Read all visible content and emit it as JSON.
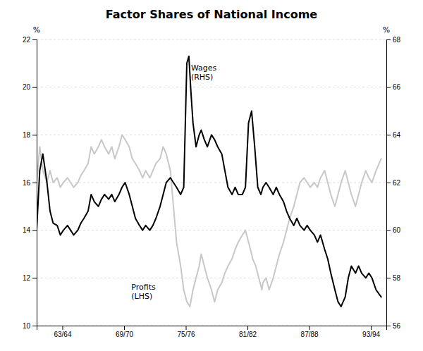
{
  "chart_data": {
    "type": "line",
    "title": "Factor Shares of National Income",
    "ylabel": "%",
    "y2label": "%",
    "xlim": [
      1961.0,
      1995.0
    ],
    "xticks": [
      {
        "value": 1963.5,
        "label": "63/64"
      },
      {
        "value": 1969.5,
        "label": "69/70"
      },
      {
        "value": 1975.5,
        "label": "75/76"
      },
      {
        "value": 1981.5,
        "label": "81/82"
      },
      {
        "value": 1987.5,
        "label": "87/88"
      },
      {
        "value": 1993.5,
        "label": "93/94"
      }
    ],
    "ylim": [
      10,
      22
    ],
    "yticks": [
      10,
      12,
      14,
      16,
      18,
      20,
      22
    ],
    "y2lim": [
      56,
      68
    ],
    "y2ticks": [
      56,
      58,
      60,
      62,
      64,
      66,
      68
    ],
    "grid": true,
    "series": [
      {
        "color": "#c8c8c8",
        "axis": "y2",
        "x": [
          1961.0,
          1961.3,
          1961.6,
          1962.0,
          1962.3,
          1962.6,
          1963.0,
          1963.3,
          1963.6,
          1964.0,
          1964.3,
          1964.6,
          1965.0,
          1965.3,
          1965.6,
          1966.0,
          1966.3,
          1966.6,
          1967.0,
          1967.3,
          1967.6,
          1968.0,
          1968.3,
          1968.6,
          1969.0,
          1969.3,
          1969.6,
          1970.0,
          1970.3,
          1970.6,
          1971.0,
          1971.3,
          1971.6,
          1972.0,
          1972.3,
          1972.6,
          1973.0,
          1973.3,
          1973.6,
          1974.0,
          1974.3,
          1974.6,
          1975.0,
          1975.3,
          1975.6,
          1975.9,
          1976.2,
          1976.5,
          1976.8,
          1977.0,
          1977.3,
          1977.6,
          1978.0,
          1978.3,
          1978.6,
          1979.0,
          1979.3,
          1979.6,
          1980.0,
          1980.3,
          1980.6,
          1981.0,
          1981.3,
          1981.6,
          1981.9,
          1982.0,
          1982.3,
          1982.6,
          1982.9,
          1983.0,
          1983.3,
          1983.6,
          1984.0,
          1984.3,
          1984.6,
          1985.0,
          1985.3,
          1985.6,
          1986.0,
          1986.3,
          1986.6,
          1987.0,
          1987.3,
          1987.6,
          1988.0,
          1988.3,
          1988.6,
          1989.0,
          1989.3,
          1989.6,
          1990.0,
          1990.3,
          1990.6,
          1991.0,
          1991.3,
          1991.6,
          1992.0,
          1992.3,
          1992.6,
          1993.0,
          1993.3,
          1993.6,
          1994.0,
          1994.5
        ],
        "values": [
          62.0,
          63.5,
          62.5,
          62.0,
          62.5,
          62.0,
          62.2,
          61.8,
          62.0,
          62.2,
          62.0,
          61.8,
          62.0,
          62.3,
          62.5,
          62.8,
          63.5,
          63.2,
          63.5,
          63.8,
          63.5,
          63.2,
          63.5,
          63.0,
          63.5,
          64.0,
          63.8,
          63.5,
          63.0,
          62.8,
          62.5,
          62.2,
          62.5,
          62.2,
          62.5,
          62.8,
          63.0,
          63.5,
          63.2,
          62.5,
          61.0,
          59.5,
          58.5,
          57.5,
          57.0,
          56.8,
          57.5,
          58.0,
          58.5,
          59.0,
          58.5,
          58.0,
          57.5,
          57.0,
          57.5,
          57.8,
          58.2,
          58.5,
          58.8,
          59.2,
          59.5,
          59.8,
          60.0,
          59.5,
          59.0,
          58.8,
          58.5,
          58.0,
          57.5,
          57.8,
          58.0,
          57.5,
          58.0,
          58.5,
          59.0,
          59.5,
          60.0,
          60.5,
          61.0,
          61.5,
          62.0,
          62.2,
          62.0,
          61.8,
          62.0,
          61.8,
          62.2,
          62.5,
          62.0,
          61.5,
          61.0,
          61.5,
          62.0,
          62.5,
          62.0,
          61.5,
          61.0,
          61.5,
          62.0,
          62.5,
          62.2,
          62.0,
          62.5,
          63.0
        ]
      },
      {
        "color": "#000000",
        "x": [
          1961.0,
          1961.3,
          1961.6,
          1962.0,
          1962.3,
          1962.6,
          1963.0,
          1963.3,
          1963.6,
          1964.0,
          1964.3,
          1964.6,
          1965.0,
          1965.3,
          1965.6,
          1966.0,
          1966.3,
          1966.6,
          1967.0,
          1967.3,
          1967.6,
          1968.0,
          1968.3,
          1968.6,
          1969.0,
          1969.3,
          1969.6,
          1970.0,
          1970.3,
          1970.6,
          1971.0,
          1971.3,
          1971.6,
          1972.0,
          1972.3,
          1972.6,
          1973.0,
          1973.3,
          1973.6,
          1974.0,
          1974.3,
          1974.6,
          1975.0,
          1975.3,
          1975.6,
          1975.8,
          1976.0,
          1976.2,
          1976.5,
          1976.8,
          1977.0,
          1977.3,
          1977.6,
          1978.0,
          1978.3,
          1978.6,
          1979.0,
          1979.3,
          1979.6,
          1980.0,
          1980.3,
          1980.6,
          1981.0,
          1981.3,
          1981.6,
          1981.9,
          1982.0,
          1982.2,
          1982.5,
          1982.8,
          1983.0,
          1983.3,
          1983.6,
          1984.0,
          1984.3,
          1984.6,
          1985.0,
          1985.3,
          1985.6,
          1986.0,
          1986.3,
          1986.6,
          1987.0,
          1987.3,
          1987.6,
          1988.0,
          1988.3,
          1988.6,
          1989.0,
          1989.3,
          1989.6,
          1990.0,
          1990.3,
          1990.6,
          1991.0,
          1991.3,
          1991.6,
          1992.0,
          1992.3,
          1992.6,
          1993.0,
          1993.3,
          1993.6,
          1994.0,
          1994.5
        ],
        "values": [
          14.0,
          16.5,
          17.2,
          16.0,
          14.8,
          14.3,
          14.2,
          13.8,
          14.0,
          14.2,
          14.0,
          13.8,
          14.0,
          14.3,
          14.5,
          14.8,
          15.5,
          15.2,
          15.0,
          15.3,
          15.5,
          15.3,
          15.5,
          15.2,
          15.5,
          15.8,
          16.0,
          15.5,
          15.0,
          14.5,
          14.2,
          14.0,
          14.2,
          14.0,
          14.2,
          14.5,
          15.0,
          15.5,
          16.0,
          16.2,
          16.0,
          15.8,
          15.5,
          15.8,
          21.0,
          21.3,
          19.8,
          18.5,
          17.5,
          18.0,
          18.2,
          17.8,
          17.5,
          18.0,
          17.8,
          17.5,
          17.2,
          16.5,
          15.8,
          15.5,
          15.8,
          15.5,
          15.5,
          15.8,
          18.5,
          19.0,
          18.5,
          17.5,
          15.8,
          15.5,
          15.8,
          16.0,
          15.8,
          15.5,
          15.8,
          15.5,
          15.2,
          14.8,
          14.5,
          14.2,
          14.5,
          14.2,
          14.0,
          14.2,
          14.0,
          13.8,
          13.5,
          13.8,
          13.2,
          12.8,
          12.2,
          11.5,
          11.0,
          10.8,
          11.2,
          12.0,
          12.5,
          12.2,
          12.5,
          12.2,
          12.0,
          12.2,
          12.0,
          11.5,
          11.2
        ]
      }
    ],
    "annotations": [
      {
        "text": "Profits\n(LHS)",
        "x": 1970.0,
        "y": 11.8
      },
      {
        "text": "Wages\n(RHS)",
        "x": 1975.8,
        "y": 21.0
      }
    ]
  }
}
